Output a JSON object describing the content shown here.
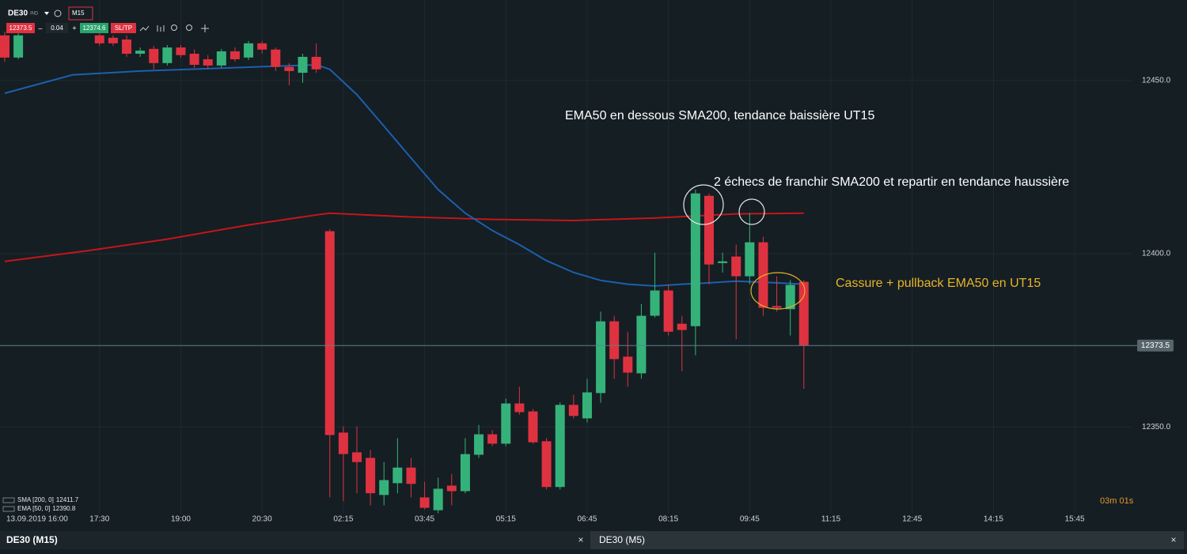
{
  "chart_data": {
    "type": "candlestick",
    "x": [
      0,
      1,
      7,
      8,
      9,
      10,
      11,
      12,
      13,
      14,
      15,
      16,
      17,
      18,
      19,
      20,
      21,
      22,
      23,
      24,
      25,
      26,
      27,
      28,
      29,
      30,
      31,
      32,
      33,
      34,
      35,
      36,
      37,
      38,
      39,
      40,
      41,
      42,
      43,
      44,
      45,
      46,
      47,
      48,
      49,
      50,
      51,
      52,
      53,
      54,
      55,
      56,
      57,
      58,
      59
    ],
    "open": [
      12463.0,
      12456.6,
      12463.0,
      12462.3,
      12461.8,
      12457.7,
      12459.1,
      12455.0,
      12459.5,
      12457.7,
      12456.1,
      12454.3,
      12458.4,
      12456.6,
      12460.7,
      12458.9,
      12453.9,
      12452.2,
      12456.8,
      12406.5,
      12348.4,
      12342.7,
      12341.1,
      12330.4,
      12333.8,
      12338.3,
      12329.7,
      12326.0,
      12333.1,
      12331.5,
      12342.0,
      12347.9,
      12345.2,
      12356.8,
      12354.5,
      12345.9,
      12332.7,
      12356.4,
      12352.5,
      12359.8,
      12380.5,
      12370.3,
      12365.5,
      12382.1,
      12389.4,
      12379.8,
      12379.1,
      12416.7,
      12397.3,
      12399.2,
      12393.5,
      12403.3,
      12384.9,
      12384.0,
      12391.9
    ],
    "high": [
      12464.1,
      12463.6,
      12463.6,
      12463.0,
      12463.0,
      12459.5,
      12460.0,
      12460.2,
      12460.2,
      12458.9,
      12457.3,
      12459.1,
      12459.5,
      12461.4,
      12461.4,
      12459.5,
      12455.0,
      12457.7,
      12460.7,
      12407.1,
      12350.2,
      12350.2,
      12343.4,
      12339.9,
      12346.8,
      12341.1,
      12334.2,
      12335.4,
      12336.5,
      12346.8,
      12350.6,
      12349.1,
      12358.2,
      12361.6,
      12355.2,
      12346.8,
      12357.1,
      12359.3,
      12363.9,
      12383.3,
      12382.1,
      12377.5,
      12385.5,
      12400.3,
      12391.2,
      12382.1,
      12418.5,
      12417.4,
      12400.3,
      12402.6,
      12411.7,
      12404.9,
      12393.5,
      12392.4,
      12392.4
    ],
    "low": [
      12455.4,
      12456.1,
      12460.0,
      12460.0,
      12456.8,
      12456.8,
      12453.2,
      12454.3,
      12456.6,
      12453.6,
      12453.2,
      12453.6,
      12455.4,
      12455.9,
      12457.7,
      12452.7,
      12448.6,
      12449.3,
      12452.2,
      12329.7,
      12328.6,
      12330.9,
      12327.4,
      12327.4,
      12330.9,
      12329.7,
      12326.3,
      12325.1,
      12327.4,
      12330.9,
      12341.1,
      12344.5,
      12344.5,
      12353.6,
      12345.2,
      12332.0,
      12332.0,
      12352.5,
      12351.3,
      12357.0,
      12363.9,
      12361.6,
      12363.9,
      12381.6,
      12376.4,
      12366.1,
      12370.7,
      12391.2,
      12394.6,
      12375.3,
      12391.2,
      12382.1,
      12383.3,
      12376.4,
      12361.0
    ],
    "close": [
      12456.6,
      12463.0,
      12460.7,
      12460.7,
      12457.7,
      12458.6,
      12455.0,
      12459.5,
      12457.3,
      12454.5,
      12454.3,
      12458.4,
      12456.1,
      12460.7,
      12458.9,
      12453.9,
      12452.7,
      12456.8,
      12453.2,
      12347.7,
      12342.2,
      12339.9,
      12330.9,
      12334.7,
      12338.3,
      12333.6,
      12326.7,
      12332.2,
      12331.5,
      12342.2,
      12347.9,
      12345.2,
      12356.8,
      12354.3,
      12345.6,
      12332.7,
      12356.4,
      12353.2,
      12360.0,
      12380.5,
      12369.6,
      12365.7,
      12382.1,
      12389.4,
      12377.5,
      12378.0,
      12417.4,
      12396.9,
      12397.8,
      12393.5,
      12403.3,
      12384.4,
      12384.4,
      12391.0,
      12373.5
    ],
    "up_color": "#35b27a",
    "down_color": "#df3241",
    "lines": [
      {
        "name": "SMA [200, 0]",
        "legend_value": 12411.7,
        "color": "#c4161c",
        "x": [
          0,
          6,
          12,
          18,
          23,
          24,
          30,
          36,
          42,
          48,
          54,
          59
        ],
        "values": [
          12397.8,
          12400.8,
          12404.2,
          12408.3,
          12411.2,
          12411.7,
          12410.6,
          12409.9,
          12409.6,
          12410.3,
          12411.5,
          12411.7
        ]
      },
      {
        "name": "EMA [50, 0]",
        "legend_value": 12390.8,
        "color": "#1d5fae",
        "x": [
          0,
          5,
          10,
          15,
          20,
          23,
          24,
          26,
          28,
          30,
          32,
          34,
          36,
          38,
          40,
          42,
          44,
          46,
          48,
          50,
          52,
          54,
          57,
          59
        ],
        "values": [
          12446.3,
          12451.6,
          12452.7,
          12453.4,
          12454.1,
          12454.5,
          12453.2,
          12445.9,
          12436.8,
          12427.6,
          12418.5,
          12411.7,
          12406.7,
          12402.6,
          12398.0,
          12394.6,
          12392.3,
          12391.2,
          12390.7,
          12391.2,
          12391.6,
          12392.1,
          12391.6,
          12391.2
        ]
      }
    ],
    "current_price": 12373.5,
    "xlim": [
      -0.35,
      83.2
    ],
    "ylim": [
      12325,
      12473.2
    ],
    "yticks": [
      {
        "value": 12450,
        "label": "12450.0"
      },
      {
        "value": 12400,
        "label": "12400.0"
      },
      {
        "value": 12350,
        "label": "12350.0"
      }
    ],
    "xticks": [
      {
        "value": 0,
        "label": "13.09.2019 16:00"
      },
      {
        "value": 7,
        "label": "17:30"
      },
      {
        "value": 13,
        "label": "19:00"
      },
      {
        "value": 19,
        "label": "20:30"
      },
      {
        "value": 25,
        "label": "02:15"
      },
      {
        "value": 31,
        "label": "03:45"
      },
      {
        "value": 37,
        "label": "05:15"
      },
      {
        "value": 43,
        "label": "06:45"
      },
      {
        "value": 49,
        "label": "08:15"
      },
      {
        "value": 55,
        "label": "09:45"
      },
      {
        "value": 61,
        "label": "11:15"
      },
      {
        "value": 67,
        "label": "12:45"
      },
      {
        "value": 73,
        "label": "14:15"
      },
      {
        "value": 79,
        "label": "15:45"
      }
    ],
    "grid": true,
    "annotations": [
      {
        "text": "EMA50 en dessous SMA200, tendance baissière UT15",
        "color": "#ffffff"
      },
      {
        "text": "2 échecs de franchir SMA200 et repartir en tendance haussière",
        "color": "#ffffff"
      },
      {
        "text": "Cassure + pullback EMA50 en UT15",
        "color": "#e8b429"
      }
    ]
  },
  "ui": {
    "symbol": "DE30",
    "market": "IND",
    "timeframe": "M15",
    "sell_price": "12373.5",
    "minus": "–",
    "lot": "0.04",
    "plus": "+",
    "buy_price": "12374.6",
    "sltp": "SL/TP",
    "countdown": "03m 01s",
    "tabs": [
      {
        "label": "DE30 (M15)",
        "close": "×"
      },
      {
        "label": "DE30 (M5)",
        "close": "×"
      }
    ]
  }
}
